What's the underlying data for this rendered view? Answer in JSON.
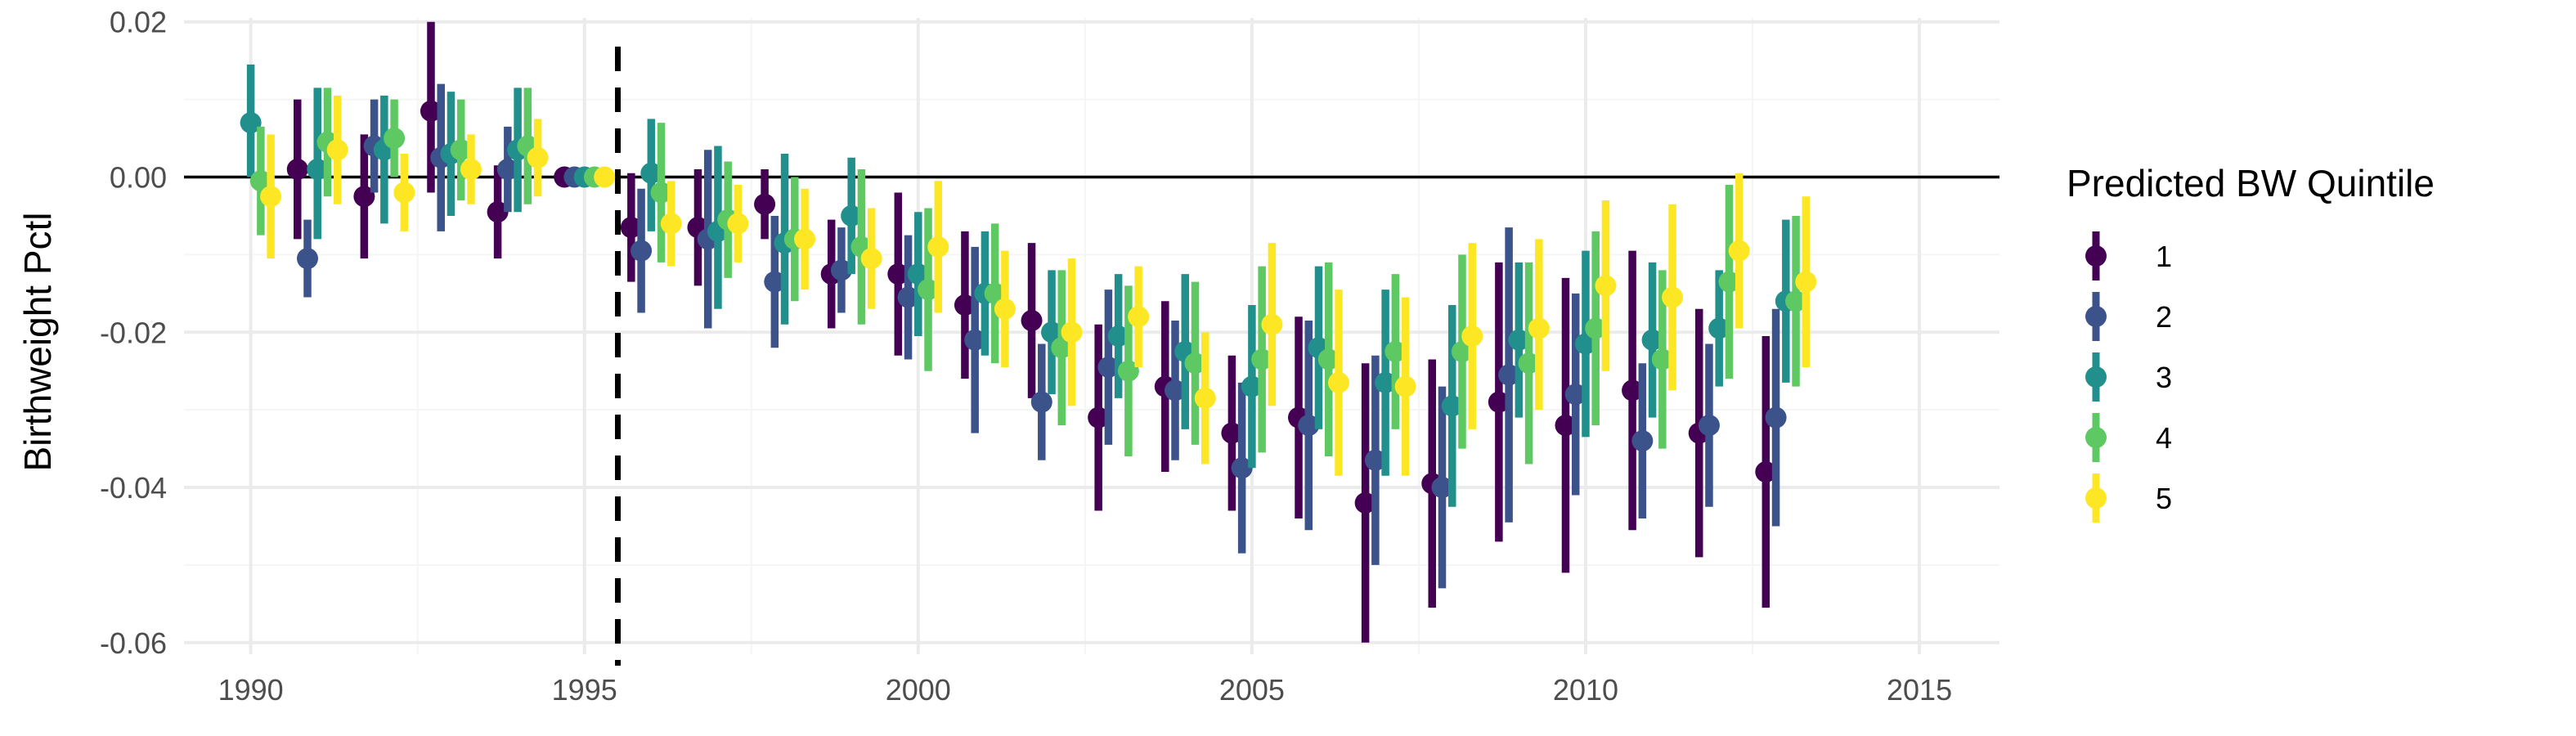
{
  "chart_data": {
    "type": "scatter",
    "subtype": "point-range (coefficient with confidence interval)",
    "title": "",
    "xlabel": "",
    "ylabel": "Birthweight Pctl",
    "xlim": [
      1989,
      2016.2
    ],
    "ylim": [
      -0.0615,
      0.0205
    ],
    "x_ticks": [
      1990,
      1995,
      2000,
      2005,
      2010,
      2015
    ],
    "x_tick_labels": [
      "1990",
      "1995",
      "2000",
      "2005",
      "2010",
      "2015"
    ],
    "y_ticks": [
      0.02,
      0.0,
      -0.02,
      -0.04,
      -0.06
    ],
    "y_tick_labels": [
      "0.02",
      "0.00",
      "-0.02",
      "-0.04",
      "-0.06"
    ],
    "grid": true,
    "reference_lines": [
      {
        "axis": "y",
        "value": 0.0,
        "style": "solid",
        "color": "#000000"
      },
      {
        "axis": "x",
        "value": 1995.5,
        "style": "dashed",
        "color": "#000000"
      }
    ],
    "legend": {
      "title": "Predicted BW Quintile",
      "position": "right",
      "entries": [
        "1",
        "2",
        "3",
        "4",
        "5"
      ]
    },
    "x_dodge_years": 0.75,
    "series": [
      {
        "name": "1",
        "color": "#440154",
        "points": [
          {
            "x": 1991,
            "y": 0.001,
            "lo": -0.008,
            "hi": 0.01
          },
          {
            "x": 1992,
            "y": -0.0025,
            "lo": -0.0105,
            "hi": 0.0055
          },
          {
            "x": 1993,
            "y": 0.0085,
            "lo": -0.002,
            "hi": 0.02
          },
          {
            "x": 1994,
            "y": -0.0045,
            "lo": -0.0105,
            "hi": 0.0015
          },
          {
            "x": 1995,
            "y": 0.0,
            "lo": 0.0,
            "hi": 0.0
          },
          {
            "x": 1996,
            "y": -0.0065,
            "lo": -0.0135,
            "hi": 0.0005
          },
          {
            "x": 1997,
            "y": -0.0065,
            "lo": -0.014,
            "hi": 0.001
          },
          {
            "x": 1998,
            "y": -0.0035,
            "lo": -0.008,
            "hi": 0.001
          },
          {
            "x": 1999,
            "y": -0.0125,
            "lo": -0.0195,
            "hi": -0.0055
          },
          {
            "x": 2000,
            "y": -0.0125,
            "lo": -0.023,
            "hi": -0.002
          },
          {
            "x": 2001,
            "y": -0.0165,
            "lo": -0.026,
            "hi": -0.007
          },
          {
            "x": 2002,
            "y": -0.0185,
            "lo": -0.0285,
            "hi": -0.0085
          },
          {
            "x": 2003,
            "y": -0.031,
            "lo": -0.043,
            "hi": -0.019
          },
          {
            "x": 2004,
            "y": -0.027,
            "lo": -0.038,
            "hi": -0.016
          },
          {
            "x": 2005,
            "y": -0.033,
            "lo": -0.043,
            "hi": -0.023
          },
          {
            "x": 2006,
            "y": -0.031,
            "lo": -0.044,
            "hi": -0.018
          },
          {
            "x": 2007,
            "y": -0.042,
            "lo": -0.06,
            "hi": -0.024
          },
          {
            "x": 2008,
            "y": -0.0395,
            "lo": -0.0555,
            "hi": -0.0235
          },
          {
            "x": 2009,
            "y": -0.029,
            "lo": -0.047,
            "hi": -0.011
          },
          {
            "x": 2010,
            "y": -0.032,
            "lo": -0.051,
            "hi": -0.013
          },
          {
            "x": 2011,
            "y": -0.0275,
            "lo": -0.0455,
            "hi": -0.0095
          },
          {
            "x": 2012,
            "y": -0.033,
            "lo": -0.049,
            "hi": -0.017
          },
          {
            "x": 2013,
            "y": -0.038,
            "lo": -0.0555,
            "hi": -0.0205
          }
        ]
      },
      {
        "name": "2",
        "color": "#3b528b",
        "points": [
          {
            "x": 1991,
            "y": -0.0105,
            "lo": -0.0155,
            "hi": -0.0055
          },
          {
            "x": 1992,
            "y": 0.004,
            "lo": -0.002,
            "hi": 0.01
          },
          {
            "x": 1993,
            "y": 0.0025,
            "lo": -0.007,
            "hi": 0.012
          },
          {
            "x": 1994,
            "y": 0.001,
            "lo": -0.0045,
            "hi": 0.0065
          },
          {
            "x": 1995,
            "y": 0.0,
            "lo": 0.0,
            "hi": 0.0
          },
          {
            "x": 1996,
            "y": -0.0095,
            "lo": -0.0175,
            "hi": -0.0015
          },
          {
            "x": 1997,
            "y": -0.008,
            "lo": -0.0195,
            "hi": 0.0035
          },
          {
            "x": 1998,
            "y": -0.0135,
            "lo": -0.022,
            "hi": -0.005
          },
          {
            "x": 1999,
            "y": -0.012,
            "lo": -0.0175,
            "hi": -0.0065
          },
          {
            "x": 2000,
            "y": -0.0155,
            "lo": -0.0235,
            "hi": -0.0075
          },
          {
            "x": 2001,
            "y": -0.021,
            "lo": -0.033,
            "hi": -0.009
          },
          {
            "x": 2002,
            "y": -0.029,
            "lo": -0.0365,
            "hi": -0.0215
          },
          {
            "x": 2003,
            "y": -0.0245,
            "lo": -0.0345,
            "hi": -0.0145
          },
          {
            "x": 2004,
            "y": -0.0275,
            "lo": -0.0365,
            "hi": -0.0185
          },
          {
            "x": 2005,
            "y": -0.0375,
            "lo": -0.0485,
            "hi": -0.0265
          },
          {
            "x": 2006,
            "y": -0.032,
            "lo": -0.0455,
            "hi": -0.0185
          },
          {
            "x": 2007,
            "y": -0.0365,
            "lo": -0.05,
            "hi": -0.023
          },
          {
            "x": 2008,
            "y": -0.04,
            "lo": -0.053,
            "hi": -0.027
          },
          {
            "x": 2009,
            "y": -0.0255,
            "lo": -0.0445,
            "hi": -0.0065
          },
          {
            "x": 2010,
            "y": -0.028,
            "lo": -0.041,
            "hi": -0.015
          },
          {
            "x": 2011,
            "y": -0.034,
            "lo": -0.044,
            "hi": -0.024
          },
          {
            "x": 2012,
            "y": -0.032,
            "lo": -0.0425,
            "hi": -0.0215
          },
          {
            "x": 2013,
            "y": -0.031,
            "lo": -0.045,
            "hi": -0.017
          }
        ]
      },
      {
        "name": "3",
        "color": "#21908c",
        "points": [
          {
            "x": 1990,
            "y": 0.007,
            "lo": 0.0,
            "hi": 0.0145
          },
          {
            "x": 1991,
            "y": 0.001,
            "lo": -0.008,
            "hi": 0.0115
          },
          {
            "x": 1992,
            "y": 0.0035,
            "lo": -0.006,
            "hi": 0.0105
          },
          {
            "x": 1993,
            "y": 0.003,
            "lo": -0.005,
            "hi": 0.011
          },
          {
            "x": 1994,
            "y": 0.0035,
            "lo": -0.0045,
            "hi": 0.0115
          },
          {
            "x": 1995,
            "y": 0.0,
            "lo": 0.0,
            "hi": 0.0
          },
          {
            "x": 1996,
            "y": 0.0005,
            "lo": -0.007,
            "hi": 0.0075
          },
          {
            "x": 1997,
            "y": -0.007,
            "lo": -0.017,
            "hi": 0.004
          },
          {
            "x": 1998,
            "y": -0.0085,
            "lo": -0.019,
            "hi": 0.003
          },
          {
            "x": 1999,
            "y": -0.005,
            "lo": -0.0125,
            "hi": 0.0025
          },
          {
            "x": 2000,
            "y": -0.0125,
            "lo": -0.0205,
            "hi": -0.0045
          },
          {
            "x": 2001,
            "y": -0.015,
            "lo": -0.023,
            "hi": -0.007
          },
          {
            "x": 2002,
            "y": -0.02,
            "lo": -0.028,
            "hi": -0.012
          },
          {
            "x": 2003,
            "y": -0.0205,
            "lo": -0.0285,
            "hi": -0.0125
          },
          {
            "x": 2004,
            "y": -0.0225,
            "lo": -0.0325,
            "hi": -0.0125
          },
          {
            "x": 2005,
            "y": -0.027,
            "lo": -0.0375,
            "hi": -0.0165
          },
          {
            "x": 2006,
            "y": -0.022,
            "lo": -0.0325,
            "hi": -0.0115
          },
          {
            "x": 2007,
            "y": -0.0265,
            "lo": -0.0385,
            "hi": -0.0145
          },
          {
            "x": 2008,
            "y": -0.0295,
            "lo": -0.0425,
            "hi": -0.0165
          },
          {
            "x": 2009,
            "y": -0.021,
            "lo": -0.031,
            "hi": -0.011
          },
          {
            "x": 2010,
            "y": -0.0215,
            "lo": -0.0335,
            "hi": -0.0095
          },
          {
            "x": 2011,
            "y": -0.021,
            "lo": -0.031,
            "hi": -0.011
          },
          {
            "x": 2012,
            "y": -0.0195,
            "lo": -0.027,
            "hi": -0.012
          },
          {
            "x": 2013,
            "y": -0.016,
            "lo": -0.0265,
            "hi": -0.0055
          }
        ]
      },
      {
        "name": "4",
        "color": "#5ec962",
        "points": [
          {
            "x": 1990,
            "y": -0.0005,
            "lo": -0.0075,
            "hi": 0.0065
          },
          {
            "x": 1991,
            "y": 0.0045,
            "lo": -0.0025,
            "hi": 0.0115
          },
          {
            "x": 1992,
            "y": 0.005,
            "lo": 0.0,
            "hi": 0.01
          },
          {
            "x": 1993,
            "y": 0.0035,
            "lo": -0.003,
            "hi": 0.01
          },
          {
            "x": 1994,
            "y": 0.004,
            "lo": -0.0035,
            "hi": 0.0115
          },
          {
            "x": 1995,
            "y": 0.0,
            "lo": 0.0,
            "hi": 0.0
          },
          {
            "x": 1996,
            "y": -0.002,
            "lo": -0.011,
            "hi": 0.007
          },
          {
            "x": 1997,
            "y": -0.0055,
            "lo": -0.013,
            "hi": 0.002
          },
          {
            "x": 1998,
            "y": -0.008,
            "lo": -0.016,
            "hi": 0.0
          },
          {
            "x": 1999,
            "y": -0.009,
            "lo": -0.019,
            "hi": 0.001
          },
          {
            "x": 2000,
            "y": -0.0145,
            "lo": -0.025,
            "hi": -0.004
          },
          {
            "x": 2001,
            "y": -0.015,
            "lo": -0.024,
            "hi": -0.006
          },
          {
            "x": 2002,
            "y": -0.022,
            "lo": -0.032,
            "hi": -0.012
          },
          {
            "x": 2003,
            "y": -0.025,
            "lo": -0.036,
            "hi": -0.014
          },
          {
            "x": 2004,
            "y": -0.024,
            "lo": -0.0345,
            "hi": -0.0135
          },
          {
            "x": 2005,
            "y": -0.0235,
            "lo": -0.0355,
            "hi": -0.0115
          },
          {
            "x": 2006,
            "y": -0.0235,
            "lo": -0.036,
            "hi": -0.011
          },
          {
            "x": 2007,
            "y": -0.0225,
            "lo": -0.0325,
            "hi": -0.0125
          },
          {
            "x": 2008,
            "y": -0.0225,
            "lo": -0.035,
            "hi": -0.01
          },
          {
            "x": 2009,
            "y": -0.024,
            "lo": -0.037,
            "hi": -0.011
          },
          {
            "x": 2010,
            "y": -0.0195,
            "lo": -0.032,
            "hi": -0.007
          },
          {
            "x": 2011,
            "y": -0.0235,
            "lo": -0.035,
            "hi": -0.012
          },
          {
            "x": 2012,
            "y": -0.0135,
            "lo": -0.026,
            "hi": -0.001
          },
          {
            "x": 2013,
            "y": -0.016,
            "lo": -0.027,
            "hi": -0.005
          }
        ]
      },
      {
        "name": "5",
        "color": "#fde725",
        "points": [
          {
            "x": 1990,
            "y": -0.0025,
            "lo": -0.0105,
            "hi": 0.0055
          },
          {
            "x": 1991,
            "y": 0.0035,
            "lo": -0.0035,
            "hi": 0.0105
          },
          {
            "x": 1992,
            "y": -0.002,
            "lo": -0.007,
            "hi": 0.003
          },
          {
            "x": 1993,
            "y": 0.001,
            "lo": -0.0035,
            "hi": 0.0055
          },
          {
            "x": 1994,
            "y": 0.0025,
            "lo": -0.0025,
            "hi": 0.0075
          },
          {
            "x": 1995,
            "y": 0.0,
            "lo": 0.0,
            "hi": 0.0
          },
          {
            "x": 1996,
            "y": -0.006,
            "lo": -0.0115,
            "hi": -0.0005
          },
          {
            "x": 1997,
            "y": -0.006,
            "lo": -0.011,
            "hi": -0.001
          },
          {
            "x": 1998,
            "y": -0.008,
            "lo": -0.0145,
            "hi": -0.0015
          },
          {
            "x": 1999,
            "y": -0.0105,
            "lo": -0.017,
            "hi": -0.004
          },
          {
            "x": 2000,
            "y": -0.009,
            "lo": -0.0175,
            "hi": -0.0005
          },
          {
            "x": 2001,
            "y": -0.017,
            "lo": -0.0245,
            "hi": -0.0095
          },
          {
            "x": 2002,
            "y": -0.02,
            "lo": -0.0295,
            "hi": -0.0105
          },
          {
            "x": 2003,
            "y": -0.018,
            "lo": -0.0245,
            "hi": -0.0115
          },
          {
            "x": 2004,
            "y": -0.0285,
            "lo": -0.037,
            "hi": -0.02
          },
          {
            "x": 2005,
            "y": -0.019,
            "lo": -0.0295,
            "hi": -0.0085
          },
          {
            "x": 2006,
            "y": -0.0265,
            "lo": -0.0385,
            "hi": -0.0145
          },
          {
            "x": 2007,
            "y": -0.027,
            "lo": -0.0385,
            "hi": -0.0155
          },
          {
            "x": 2008,
            "y": -0.0205,
            "lo": -0.0325,
            "hi": -0.0085
          },
          {
            "x": 2009,
            "y": -0.0195,
            "lo": -0.03,
            "hi": -0.008
          },
          {
            "x": 2010,
            "y": -0.014,
            "lo": -0.025,
            "hi": -0.003
          },
          {
            "x": 2011,
            "y": -0.0155,
            "lo": -0.0275,
            "hi": -0.0035
          },
          {
            "x": 2012,
            "y": -0.0095,
            "lo": -0.0195,
            "hi": 0.0005
          },
          {
            "x": 2013,
            "y": -0.0135,
            "lo": -0.0245,
            "hi": -0.0025
          }
        ]
      }
    ]
  }
}
